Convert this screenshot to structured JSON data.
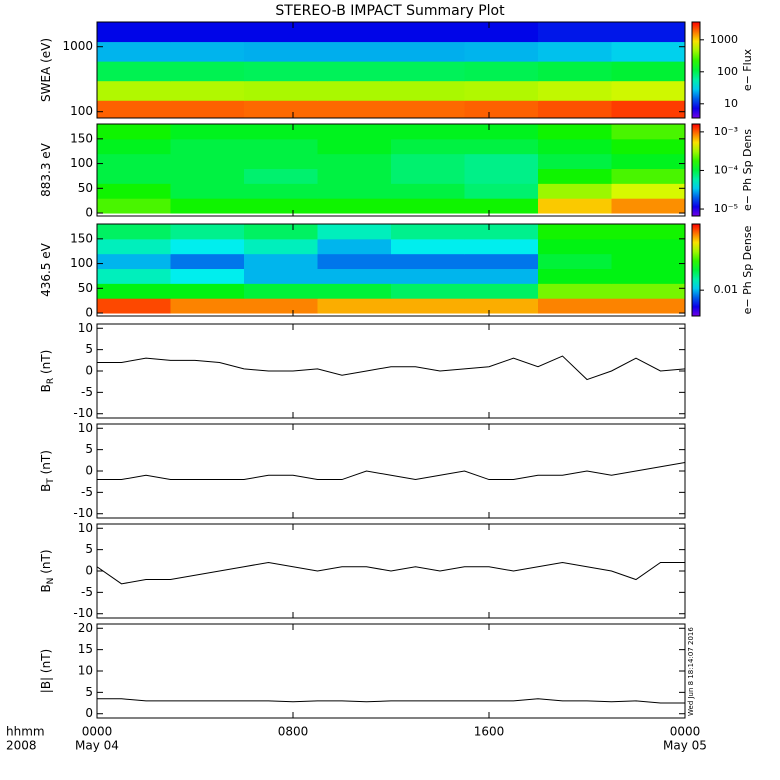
{
  "chart_data": [
    {
      "type": "heatmap",
      "title": "STEREO-B IMPACT Summary Plot",
      "ylabel": "SWEA (eV)",
      "ylog": true,
      "ylim": [
        80,
        2400
      ],
      "yticks": [
        100,
        1000
      ],
      "bins": [
        0,
        3,
        6,
        9,
        12,
        15,
        18,
        21,
        24
      ],
      "y_bins": [
        80,
        150,
        300,
        600,
        1200,
        2400
      ],
      "values": [
        [
          2000,
          2000,
          1900,
          1900,
          1900,
          2000,
          2200,
          2500
        ],
        [
          500,
          500,
          480,
          480,
          480,
          500,
          550,
          600
        ],
        [
          100,
          100,
          95,
          95,
          95,
          100,
          110,
          120
        ],
        [
          25,
          25,
          24,
          24,
          24,
          25,
          27,
          30
        ],
        [
          8,
          8,
          8,
          8,
          8,
          8,
          9,
          9
        ]
      ],
      "zlim": [
        3.6,
        3600
      ],
      "zlog": true,
      "zticks": [
        10,
        100,
        1000
      ],
      "zlabel": "e− Flux"
    },
    {
      "type": "heatmap",
      "ylabel": "883.3 eV",
      "ylim": [
        -6,
        180
      ],
      "yticks": [
        0,
        50,
        100,
        150
      ],
      "bins": [
        0,
        3,
        6,
        9,
        12,
        15,
        18,
        21,
        24
      ],
      "y_bins": [
        0,
        30,
        60,
        90,
        120,
        150,
        180
      ],
      "values": [
        [
          0.0002,
          0.00015,
          0.00015,
          0.00015,
          0.00015,
          0.00015,
          0.0006,
          0.0008
        ],
        [
          0.00015,
          0.0001,
          0.0001,
          0.0001,
          0.0001,
          8e-05,
          0.0003,
          0.0004
        ],
        [
          0.0001,
          0.0001,
          8e-05,
          0.0001,
          8e-05,
          7e-05,
          0.00015,
          0.0002
        ],
        [
          0.0001,
          0.0001,
          0.0001,
          0.0001,
          8e-05,
          7e-05,
          0.0001,
          0.00012
        ],
        [
          0.00012,
          0.0001,
          0.0001,
          0.00012,
          0.0001,
          0.0001,
          0.00012,
          0.00015
        ],
        [
          0.00015,
          0.00012,
          0.00012,
          0.00012,
          0.00012,
          0.00012,
          0.00015,
          0.0002
        ]
      ],
      "zlim": [
        6.6e-06,
        0.0016
      ],
      "zlog": true,
      "zticks": [
        {
          "value": 0.001,
          "label": "10⁻³"
        },
        {
          "value": 0.0001,
          "label": "10⁻⁴"
        },
        {
          "value": 1e-05,
          "label": "10⁻⁵"
        }
      ],
      "zlabel": "e− Ph Sp Dens"
    },
    {
      "type": "heatmap",
      "ylabel": "436.5 eV",
      "ylim": [
        -6,
        180
      ],
      "yticks": [
        0,
        50,
        100,
        150
      ],
      "bins": [
        0,
        3,
        6,
        9,
        12,
        15,
        18,
        21,
        24
      ],
      "y_bins": [
        0,
        30,
        60,
        90,
        120,
        150,
        180
      ],
      "values": [
        [
          0.033,
          0.03,
          0.03,
          0.028,
          0.028,
          0.028,
          0.03,
          0.03
        ],
        [
          0.016,
          0.016,
          0.015,
          0.015,
          0.014,
          0.014,
          0.02,
          0.02
        ],
        [
          0.012,
          0.011,
          0.01,
          0.01,
          0.01,
          0.01,
          0.016,
          0.016
        ],
        [
          0.01,
          0.009,
          0.01,
          0.009,
          0.009,
          0.009,
          0.015,
          0.016
        ],
        [
          0.012,
          0.011,
          0.012,
          0.01,
          0.011,
          0.011,
          0.016,
          0.016
        ],
        [
          0.014,
          0.013,
          0.014,
          0.012,
          0.013,
          0.013,
          0.017,
          0.017
        ]
      ],
      "zlim": [
        0.006,
        0.037
      ],
      "zlog": true,
      "zticks": [
        0.01
      ],
      "zlabel": "e− Ph Sp Dense"
    },
    {
      "type": "line",
      "ylabel": "B",
      "ylabel_sub": "R",
      "ylabel_unit": " (nT)",
      "ylim": [
        -11,
        11
      ],
      "yticks": [
        -10,
        -5,
        0,
        5,
        10
      ],
      "x": [
        0,
        1,
        2,
        3,
        4,
        5,
        6,
        7,
        8,
        9,
        10,
        11,
        12,
        13,
        14,
        15,
        16,
        17,
        18,
        19,
        20,
        21,
        22,
        23,
        24
      ],
      "values": [
        2,
        2,
        3,
        2.5,
        2.5,
        2,
        0.5,
        0,
        0,
        0.5,
        -1,
        0,
        1,
        1,
        0,
        0.5,
        1,
        3,
        1,
        3.5,
        -2,
        0,
        3,
        0,
        0.5
      ]
    },
    {
      "type": "line",
      "ylabel": "B",
      "ylabel_sub": "T",
      "ylabel_unit": " (nT)",
      "ylim": [
        -11,
        11
      ],
      "yticks": [
        -10,
        -5,
        0,
        5,
        10
      ],
      "x": [
        0,
        1,
        2,
        3,
        4,
        5,
        6,
        7,
        8,
        9,
        10,
        11,
        12,
        13,
        14,
        15,
        16,
        17,
        18,
        19,
        20,
        21,
        22,
        23,
        24
      ],
      "values": [
        -2,
        -2,
        -1,
        -2,
        -2,
        -2,
        -2,
        -1,
        -1,
        -2,
        -2,
        0,
        -1,
        -2,
        -1,
        0,
        -2,
        -2,
        -1,
        -1,
        0,
        -1,
        0,
        1,
        2
      ]
    },
    {
      "type": "line",
      "ylabel": "B",
      "ylabel_sub": "N",
      "ylabel_unit": " (nT)",
      "ylim": [
        -11,
        11
      ],
      "yticks": [
        -10,
        -5,
        0,
        5,
        10
      ],
      "x": [
        0,
        1,
        2,
        3,
        4,
        5,
        6,
        7,
        8,
        9,
        10,
        11,
        12,
        13,
        14,
        15,
        16,
        17,
        18,
        19,
        20,
        21,
        22,
        23,
        24
      ],
      "values": [
        1,
        -3,
        -2,
        -2,
        -1,
        0,
        1,
        2,
        1,
        0,
        1,
        1,
        0,
        1,
        0,
        1,
        1,
        0,
        1,
        2,
        1,
        0,
        -2,
        2,
        2
      ]
    },
    {
      "type": "line",
      "ylabel": "|B| (nT)",
      "ylim": [
        -1,
        21
      ],
      "yticks": [
        0,
        5,
        10,
        15,
        20
      ],
      "x": [
        0,
        1,
        2,
        3,
        4,
        5,
        6,
        7,
        8,
        9,
        10,
        11,
        12,
        13,
        14,
        15,
        16,
        17,
        18,
        19,
        20,
        21,
        22,
        23,
        24
      ],
      "values": [
        3.5,
        3.5,
        3,
        3,
        3,
        3,
        3,
        3,
        2.8,
        3,
        3,
        2.8,
        3,
        3,
        3,
        3,
        3,
        3,
        3.5,
        3,
        3,
        2.8,
        3,
        2.5,
        2.5
      ],
      "xlim": [
        0,
        24
      ],
      "xticks": [
        {
          "value": 0,
          "label": "0000"
        },
        {
          "value": 8,
          "label": "0800"
        },
        {
          "value": 16,
          "label": "1600"
        },
        {
          "value": 24,
          "label": "0000"
        }
      ],
      "xdate_labels": [
        {
          "value": 0,
          "label": "May 04"
        },
        {
          "value": 24,
          "label": "May 05"
        }
      ],
      "x_label": "hhmm",
      "x_label_year": "2008",
      "timestamp": "Wed Jun  8 18:14:07 2016"
    }
  ]
}
